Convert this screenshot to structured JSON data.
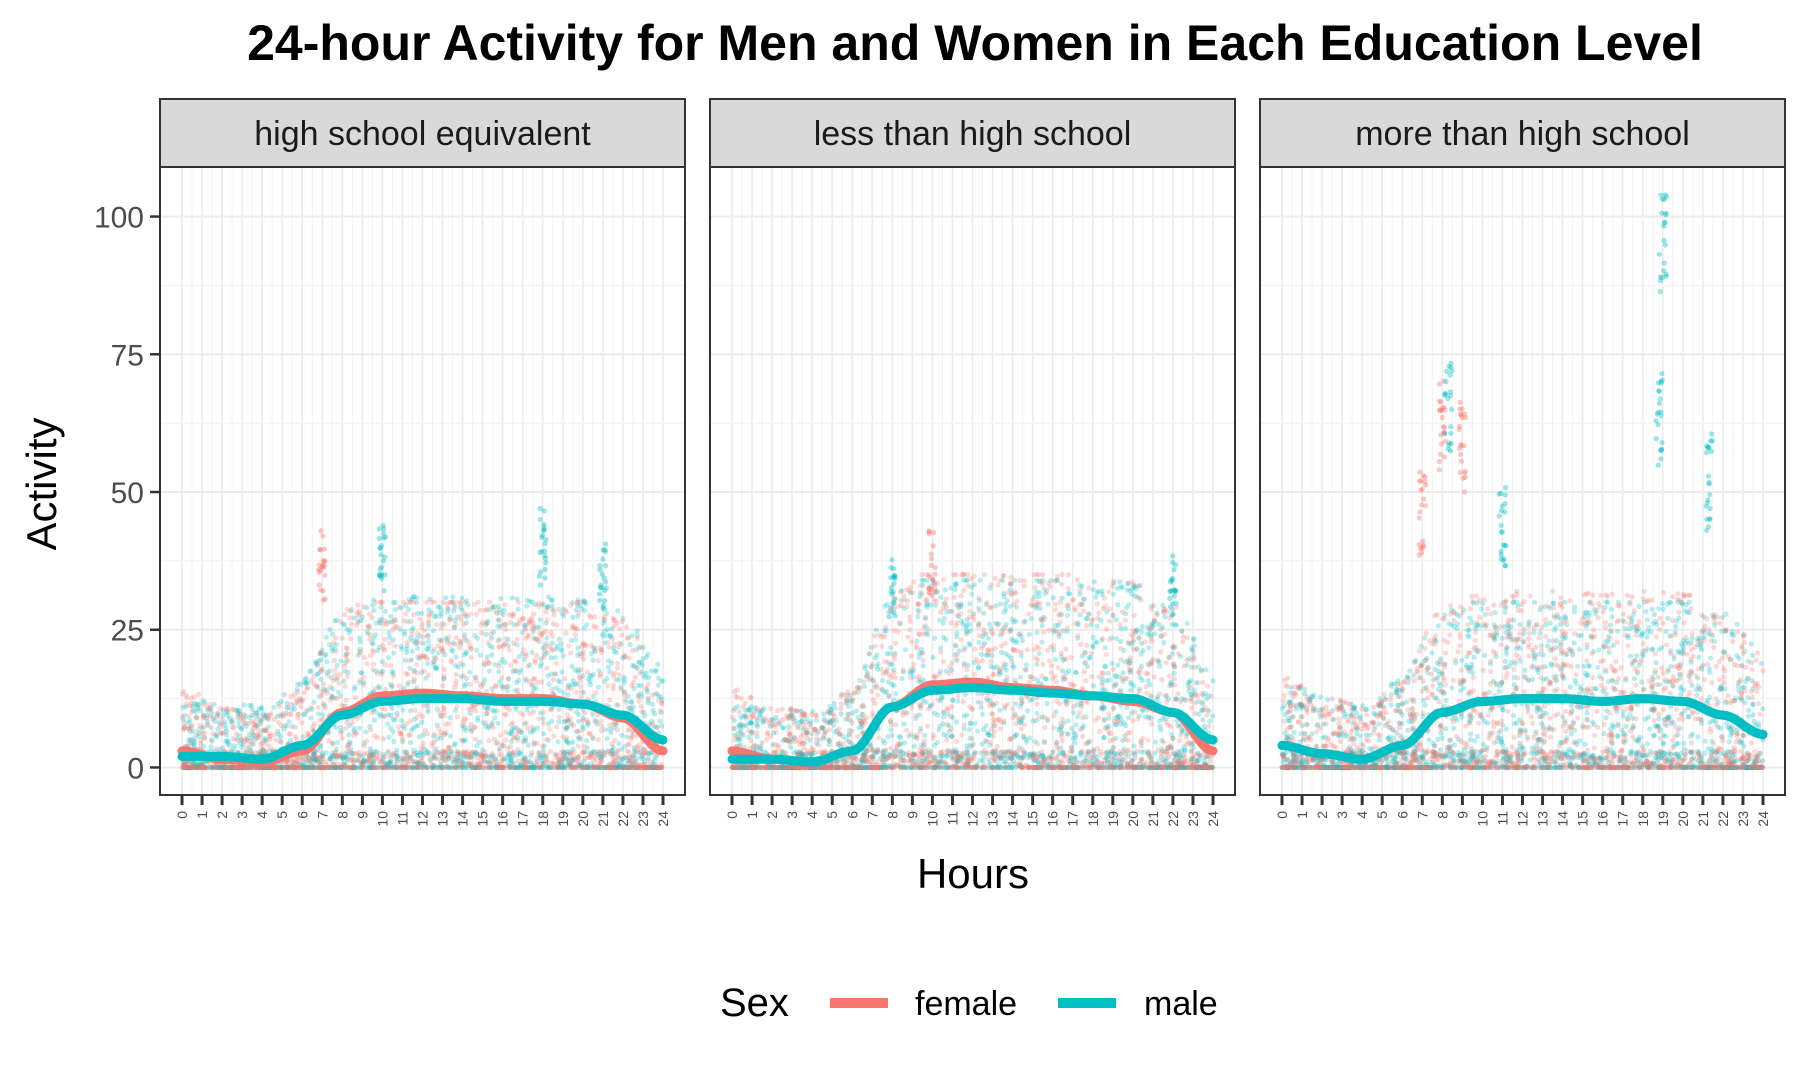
{
  "chart_data": {
    "type": "scatter",
    "title": "24-hour Activity for Men and Women in Each Education Level",
    "xlabel": "Hours",
    "ylabel": "Activity",
    "xlim": [
      0,
      24
    ],
    "ylim": [
      -5,
      109
    ],
    "x_ticks": [
      "0",
      "1",
      "2",
      "3",
      "4",
      "5",
      "6",
      "7",
      "8",
      "9",
      "10",
      "11",
      "12",
      "13",
      "14",
      "15",
      "16",
      "17",
      "18",
      "19",
      "20",
      "21",
      "22",
      "23",
      "24"
    ],
    "y_ticks": [
      0,
      25,
      50,
      75,
      100
    ],
    "grid": true,
    "legend": {
      "title": "Sex",
      "position": "bottom",
      "entries": [
        "female",
        "male"
      ]
    },
    "colors": {
      "female": "#F8766D",
      "male": "#00BFC4"
    },
    "facets": [
      {
        "label": "high school equivalent",
        "smooth": {
          "x": [
            0,
            2,
            4,
            6,
            8,
            10,
            12,
            14,
            16,
            18,
            20,
            22,
            24
          ],
          "female": [
            3,
            1.5,
            1,
            3,
            10,
            13,
            13.5,
            13,
            12.5,
            12.5,
            11.5,
            9,
            3
          ],
          "male": [
            2,
            2,
            1.5,
            4,
            9.5,
            12,
            12.5,
            12.5,
            12,
            12,
            11.5,
            9.5,
            5
          ]
        },
        "band": {
          "female": [
            0,
            30
          ],
          "male": [
            0,
            31
          ]
        },
        "peaks": [
          {
            "series": "female",
            "x": 7,
            "y": 43
          },
          {
            "series": "male",
            "x": 10,
            "y": 44
          },
          {
            "series": "male",
            "x": 18,
            "y": 47
          },
          {
            "series": "male",
            "x": 21,
            "y": 41
          }
        ]
      },
      {
        "label": "less than high school",
        "smooth": {
          "x": [
            0,
            2,
            4,
            6,
            8,
            10,
            12,
            14,
            16,
            18,
            20,
            22,
            24
          ],
          "female": [
            3,
            1.5,
            1,
            3,
            11,
            15,
            15.5,
            14.5,
            14,
            13,
            12,
            10,
            3
          ],
          "male": [
            1.5,
            1.5,
            1,
            3,
            11,
            14,
            14.5,
            14,
            13.5,
            13,
            12.5,
            10,
            5
          ]
        },
        "band": {
          "female": [
            0,
            35
          ],
          "male": [
            0,
            34
          ]
        },
        "peaks": [
          {
            "series": "female",
            "x": 10,
            "y": 43
          },
          {
            "series": "male",
            "x": 8,
            "y": 38
          },
          {
            "series": "male",
            "x": 22,
            "y": 39
          }
        ]
      },
      {
        "label": "more than high school",
        "smooth": {
          "x": [
            0,
            2,
            4,
            6,
            8,
            10,
            12,
            14,
            16,
            18,
            20,
            22,
            24
          ],
          "female": [
            4,
            2.5,
            1.5,
            4,
            10,
            12,
            12.5,
            12.5,
            12,
            12.5,
            12,
            9.5,
            6
          ],
          "male": [
            4,
            2.5,
            1.5,
            4,
            10,
            12,
            12.5,
            12.5,
            12,
            12.5,
            12,
            9.5,
            6
          ]
        },
        "band": {
          "female": [
            0,
            32
          ],
          "male": [
            0,
            30
          ]
        },
        "peaks": [
          {
            "series": "female",
            "x": 7,
            "y": 54
          },
          {
            "series": "female",
            "x": 8,
            "y": 72
          },
          {
            "series": "female",
            "x": 9,
            "y": 68
          },
          {
            "series": "male",
            "x": 8.3,
            "y": 74
          },
          {
            "series": "male",
            "x": 11,
            "y": 52
          },
          {
            "series": "male",
            "x": 19,
            "y": 104
          },
          {
            "series": "male",
            "x": 18.8,
            "y": 72
          },
          {
            "series": "male",
            "x": 21.3,
            "y": 61
          }
        ]
      }
    ]
  }
}
